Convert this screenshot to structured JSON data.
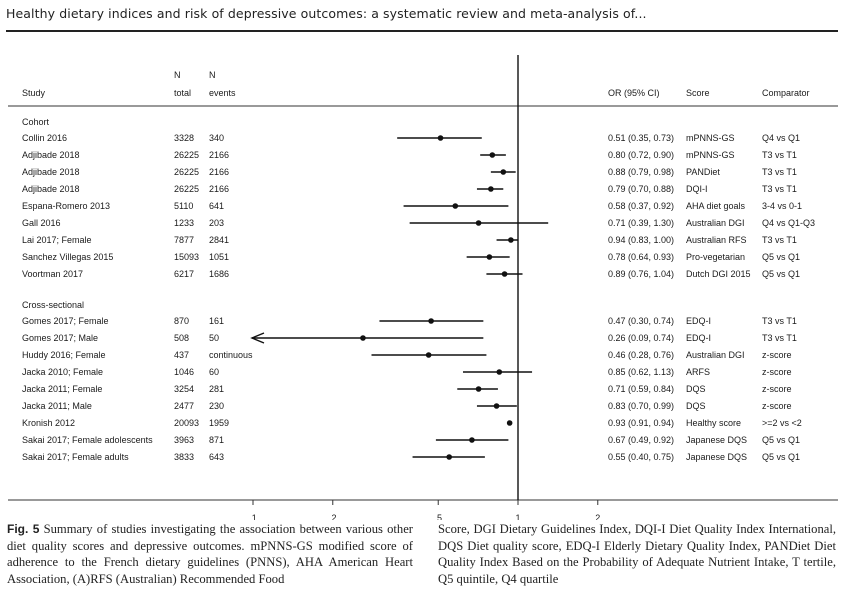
{
  "header": {
    "title": "Healthy dietary indices and risk of depressive outcomes: a systematic review and meta-analysis of..."
  },
  "columns": {
    "n_total_top": "N",
    "n_total_bottom": "total",
    "n_events_top": "N",
    "n_events_bottom": "events",
    "study": "Study",
    "or": "OR (95% CI)",
    "score": "Score",
    "comparator": "Comparator"
  },
  "chart_data": {
    "type": "forest",
    "xscale": "log",
    "reference_line": 1,
    "xlim": [
      0.07,
      2.3
    ],
    "xticks": [
      {
        "value": 0.1,
        "label": ".1"
      },
      {
        "value": 0.2,
        "label": ".2"
      },
      {
        "value": 0.5,
        "label": ".5"
      },
      {
        "value": 1,
        "label": "1"
      },
      {
        "value": 2,
        "label": "2"
      }
    ],
    "groups": [
      {
        "name": "Cohort",
        "studies": [
          {
            "study": "Collin 2016",
            "total": "3328",
            "events": "340",
            "or": 0.51,
            "lo": 0.35,
            "hi": 0.73,
            "or_text": "0.51 (0.35, 0.73)",
            "score": "mPNNS-GS",
            "comparator": "Q4 vs Q1",
            "arrow": false
          },
          {
            "study": "Adjibade 2018",
            "total": "26225",
            "events": "2166",
            "or": 0.8,
            "lo": 0.72,
            "hi": 0.9,
            "or_text": "0.80 (0.72, 0.90)",
            "score": "mPNNS-GS",
            "comparator": "T3 vs T1",
            "arrow": false
          },
          {
            "study": "Adjibade 2018",
            "total": "26225",
            "events": "2166",
            "or": 0.88,
            "lo": 0.79,
            "hi": 0.98,
            "or_text": "0.88 (0.79, 0.98)",
            "score": "PANDiet",
            "comparator": "T3 vs T1",
            "arrow": false
          },
          {
            "study": "Adjibade 2018",
            "total": "26225",
            "events": "2166",
            "or": 0.79,
            "lo": 0.7,
            "hi": 0.88,
            "or_text": "0.79 (0.70, 0.88)",
            "score": "DQI-I",
            "comparator": "T3 vs T1",
            "arrow": false
          },
          {
            "study": "Espana-Romero 2013",
            "total": "5110",
            "events": "641",
            "or": 0.58,
            "lo": 0.37,
            "hi": 0.92,
            "or_text": "0.58 (0.37, 0.92)",
            "score": "AHA diet goals",
            "comparator": "3-4 vs 0-1",
            "arrow": false
          },
          {
            "study": "Gall 2016",
            "total": "1233",
            "events": "203",
            "or": 0.71,
            "lo": 0.39,
            "hi": 1.3,
            "or_text": "0.71 (0.39, 1.30)",
            "score": "Australian DGI",
            "comparator": "Q4 vs Q1-Q3",
            "arrow": false
          },
          {
            "study": "Lai 2017; Female",
            "total": "7877",
            "events": "2841",
            "or": 0.94,
            "lo": 0.83,
            "hi": 1.0,
            "or_text": "0.94 (0.83, 1.00)",
            "score": "Australian RFS",
            "comparator": "T3 vs T1",
            "arrow": false
          },
          {
            "study": "Sanchez Villegas 2015",
            "total": "15093",
            "events": "1051",
            "or": 0.78,
            "lo": 0.64,
            "hi": 0.93,
            "or_text": "0.78 (0.64, 0.93)",
            "score": "Pro-vegetarian",
            "comparator": "Q5 vs Q1",
            "arrow": false
          },
          {
            "study": "Voortman 2017",
            "total": "6217",
            "events": "1686",
            "or": 0.89,
            "lo": 0.76,
            "hi": 1.04,
            "or_text": "0.89 (0.76, 1.04)",
            "score": "Dutch DGI 2015",
            "comparator": "Q5 vs Q1",
            "arrow": false
          }
        ]
      },
      {
        "name": "Cross-sectional",
        "studies": [
          {
            "study": "Gomes 2017; Female",
            "total": "870",
            "events": "161",
            "or": 0.47,
            "lo": 0.3,
            "hi": 0.74,
            "or_text": "0.47 (0.30, 0.74)",
            "score": "EDQ-I",
            "comparator": "T3 vs T1",
            "arrow": false
          },
          {
            "study": "Gomes 2017; Male",
            "total": "508",
            "events": "50",
            "or": 0.26,
            "lo": 0.09,
            "hi": 0.74,
            "or_text": "0.26 (0.09, 0.74)",
            "score": "EDQ-I",
            "comparator": "T3 vs T1",
            "arrow": true
          },
          {
            "study": "Huddy 2016; Female",
            "total": "437",
            "events": "continuous",
            "or": 0.46,
            "lo": 0.28,
            "hi": 0.76,
            "or_text": "0.46 (0.28, 0.76)",
            "score": "Australian DGI",
            "comparator": "z-score",
            "arrow": false
          },
          {
            "study": "Jacka 2010; Female",
            "total": "1046",
            "events": "60",
            "or": 0.85,
            "lo": 0.62,
            "hi": 1.13,
            "or_text": "0.85 (0.62, 1.13)",
            "score": "ARFS",
            "comparator": "z-score",
            "arrow": false
          },
          {
            "study": "Jacka 2011; Female",
            "total": "3254",
            "events": "281",
            "or": 0.71,
            "lo": 0.59,
            "hi": 0.84,
            "or_text": "0.71 (0.59, 0.84)",
            "score": "DQS",
            "comparator": "z-score",
            "arrow": false
          },
          {
            "study": "Jacka 2011; Male",
            "total": "2477",
            "events": "230",
            "or": 0.83,
            "lo": 0.7,
            "hi": 0.99,
            "or_text": "0.83 (0.70, 0.99)",
            "score": "DQS",
            "comparator": "z-score",
            "arrow": false
          },
          {
            "study": "Kronish 2012",
            "total": "20093",
            "events": "1959",
            "or": 0.93,
            "lo": 0.91,
            "hi": 0.94,
            "or_text": "0.93 (0.91, 0.94)",
            "score": "Healthy score",
            "comparator": ">=2 vs <2",
            "arrow": false
          },
          {
            "study": "Sakai 2017; Female adolescents",
            "total": "3963",
            "events": "871",
            "or": 0.67,
            "lo": 0.49,
            "hi": 0.92,
            "or_text": "0.67 (0.49, 0.92)",
            "score": "Japanese DQS",
            "comparator": "Q5 vs Q1",
            "arrow": false
          },
          {
            "study": "Sakai 2017; Female adults",
            "total": "3833",
            "events": "643",
            "or": 0.55,
            "lo": 0.4,
            "hi": 0.75,
            "or_text": "0.55 (0.40, 0.75)",
            "score": "Japanese DQS",
            "comparator": "Q5 vs Q1",
            "arrow": false
          }
        ]
      }
    ]
  },
  "caption": {
    "label": "Fig. 5",
    "left": "Summary of studies investigating the association between various other diet quality scores and depressive outcomes. mPNNS-GS modified score of adherence to the French dietary guidelines (PNNS), AHA American Heart Association, (A)RFS (Australian) Recommended Food",
    "right": "Score, DGI Dietary Guidelines Index, DQI-I Diet Quality Index International, DQS Diet quality score, EDQ-I Elderly Dietary Quality Index, PANDiet Diet Quality Index Based on the Probability of Adequate Nutrient Intake, T tertile, Q5 quintile, Q4 quartile"
  }
}
